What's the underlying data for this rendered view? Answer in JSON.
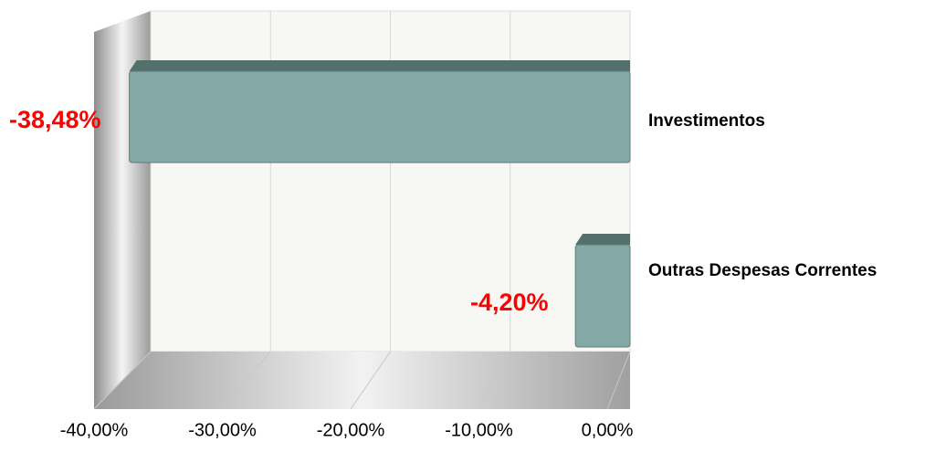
{
  "chart_data": {
    "type": "bar3d_h",
    "categories": [
      "Investimentos",
      "Outras Despesas Correntes"
    ],
    "values": [
      -38.48,
      -4.2
    ],
    "value_labels": [
      "-38,48%",
      "-4,20%"
    ],
    "color": "#84a9a6",
    "xlim": [
      -40,
      0
    ],
    "xticks": [
      {
        "value": -40,
        "label": "-40,00%"
      },
      {
        "value": -30,
        "label": "-30,00%"
      },
      {
        "value": -20,
        "label": "-20,00%"
      },
      {
        "value": -10,
        "label": "-10,00%"
      },
      {
        "value": 0,
        "label": "0,00%"
      }
    ],
    "grid": true
  }
}
